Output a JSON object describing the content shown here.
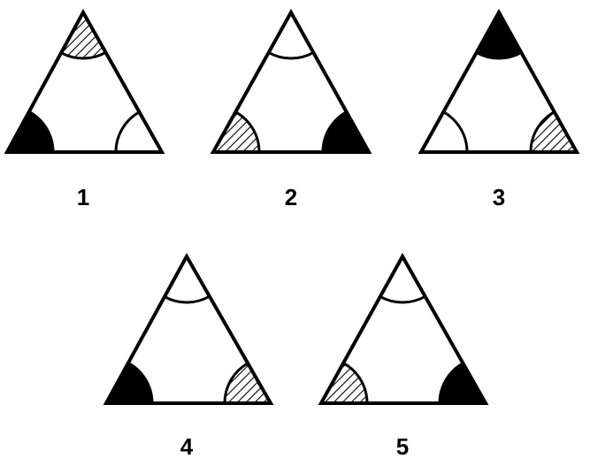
{
  "figures": [
    {
      "label": "1",
      "corners": {
        "top": "hatched",
        "left": "solid",
        "right": "outline"
      }
    },
    {
      "label": "2",
      "corners": {
        "top": "outline",
        "left": "hatched",
        "right": "solid"
      }
    },
    {
      "label": "3",
      "corners": {
        "top": "solid",
        "left": "outline",
        "right": "hatched"
      }
    },
    {
      "label": "4",
      "corners": {
        "top": "outline",
        "left": "solid",
        "right": "hatched"
      }
    },
    {
      "label": "5",
      "corners": {
        "top": "outline",
        "left": "hatched",
        "right": "solid"
      }
    }
  ],
  "colors": {
    "ink": "#000000",
    "paper": "#ffffff"
  }
}
